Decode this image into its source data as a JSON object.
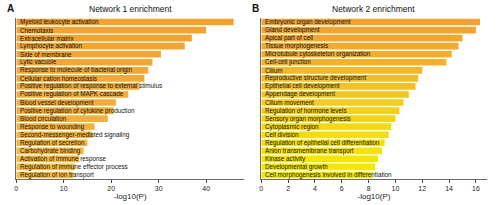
{
  "chart_data": [
    {
      "type": "bar",
      "orientation": "horizontal",
      "panel_label": "A",
      "title": "Network 1 enrichment",
      "x_label": "-log10(P)",
      "tick_labels": "x",
      "grid": false,
      "categories": [
        "Myeloid leukocyte activation",
        "Chemotaxis",
        "Extracellular matrix",
        "Lymphocyte activation",
        "Side of membrane",
        "Lytic vacuole",
        "Response to molecule of bacterial origin",
        "Cellular cation homeostasis",
        "Positive regulation of response to external stimulus",
        "Positive regulation of MAPK cascade",
        "Blood vessel development",
        "Positive regulation of cytokine production",
        "Blood circulation",
        "Response to wounding",
        "Second-messenger-mediated signaling",
        "Regulation of secretion",
        "Carbohydrate binding",
        "Activation of immune response",
        "Regulation of immune effector process",
        "Regulation of ion transport"
      ],
      "values": [
        45.8,
        40,
        37,
        35.5,
        30.5,
        28.7,
        27.8,
        27,
        26,
        23.6,
        21,
        20.5,
        19.3,
        16.5,
        16,
        15,
        14.2,
        13.3,
        12.4,
        12
      ],
      "colors": [
        "#f2a230",
        "#f2a331",
        "#f2a432",
        "#f2a533",
        "#f3a634",
        "#f3a735",
        "#f3a836",
        "#f3a937",
        "#f3aa38",
        "#f4ac39",
        "#f4ad3a",
        "#f4ae3b",
        "#f4b03c",
        "#f5b23d",
        "#f5b43e",
        "#f5b63f",
        "#f6b840",
        "#f6ba41",
        "#f6bc42",
        "#f7be43"
      ],
      "xlim": [
        0,
        48
      ],
      "xticks": [
        0,
        10,
        20,
        30,
        40
      ]
    },
    {
      "type": "bar",
      "orientation": "horizontal",
      "panel_label": "B",
      "title": "Network 2 enrichment",
      "x_label": "-log10(P)",
      "tick_labels": "x",
      "grid": false,
      "categories": [
        "Embryonic organ development",
        "Gland development",
        "Apical part of cell",
        "Tissue morphogenesis",
        "Microtubule cytoskeleton organization",
        "Cell-cell junction",
        "Cilium",
        "Reproductive structure development",
        "Epithelial cell development",
        "Appendage development",
        "Cilium movement",
        "Regulation of hormone levels",
        "Sensory organ morphogenesis",
        "Cytoplasmic region",
        "Cell division",
        "Regulation of epithelial cell differentiation",
        "Anion transmembrane transport",
        "Kinase activity",
        "Developmental growth",
        "Cell morphogenesis involved in differentiation"
      ],
      "values": [
        16.3,
        16,
        15,
        14.7,
        14.2,
        13.8,
        12,
        11.7,
        11.5,
        11,
        10.6,
        10.3,
        10,
        9.7,
        9.5,
        9.2,
        9,
        8.7,
        8.5,
        8.3
      ],
      "colors": [
        "#f2a230",
        "#f2a430",
        "#f3a730",
        "#f3aa2f",
        "#f3ad2e",
        "#f4b12c",
        "#f4b72a",
        "#f4bc27",
        "#f4c124",
        "#f4c621",
        "#f4cb1e",
        "#f4d01a",
        "#f4d416",
        "#f4d812",
        "#f4dc0f",
        "#f4df0c",
        "#f4e209",
        "#f4e507",
        "#f4e705",
        "#f4e904"
      ],
      "xlim": [
        0,
        16.8
      ],
      "xticks": [
        0,
        2,
        4,
        6,
        8,
        10,
        12,
        14,
        16
      ]
    }
  ]
}
